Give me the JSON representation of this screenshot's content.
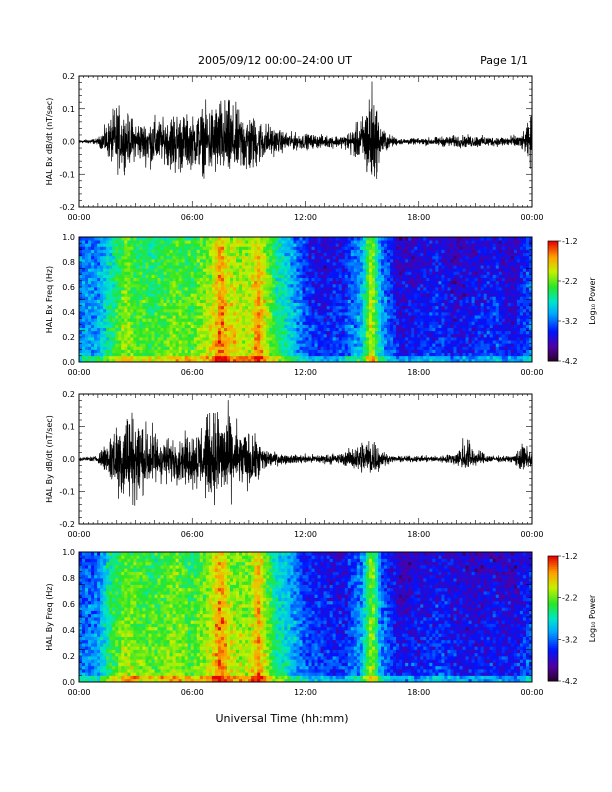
{
  "header": {
    "title": "2005/09/12  00:00–24:00 UT",
    "page": "Page 1/1"
  },
  "xaxis": {
    "label": "Universal Time (hh:mm)",
    "ticks": [
      "00:00",
      "06:00",
      "12:00",
      "18:00",
      "00:00"
    ],
    "range_hours": [
      0,
      24
    ]
  },
  "chart_data": [
    {
      "type": "line",
      "ylabel": "HAL Bx dB/dt (nT/sec)",
      "ylim": [
        -0.2,
        0.2
      ],
      "yticks": [
        "0.2",
        "0.1",
        "0.0",
        "-0.1",
        "-0.2"
      ],
      "envelope": {
        "x_hours": [
          0,
          1,
          1.5,
          2,
          2.5,
          3,
          3.5,
          4,
          4.5,
          5,
          5.5,
          6,
          6.5,
          7,
          7.5,
          8,
          8.5,
          9,
          9.5,
          10,
          10.5,
          11,
          12,
          13,
          14,
          14.5,
          15,
          15.5,
          16,
          16.5,
          17,
          18,
          19,
          20,
          21,
          22,
          23,
          23.5,
          24
        ],
        "upper": [
          0.005,
          0.01,
          0.06,
          0.12,
          0.09,
          0.07,
          0.06,
          0.08,
          0.07,
          0.1,
          0.09,
          0.08,
          0.11,
          0.12,
          0.14,
          0.13,
          0.1,
          0.09,
          0.07,
          0.06,
          0.04,
          0.03,
          0.025,
          0.02,
          0.02,
          0.04,
          0.08,
          0.2,
          0.05,
          0.02,
          0.01,
          0.01,
          0.015,
          0.02,
          0.02,
          0.015,
          0.02,
          0.02,
          0.09
        ],
        "lower": [
          -0.005,
          -0.01,
          -0.05,
          -0.1,
          -0.08,
          -0.06,
          -0.07,
          -0.09,
          -0.06,
          -0.11,
          -0.1,
          -0.08,
          -0.1,
          -0.12,
          -0.11,
          -0.13,
          -0.1,
          -0.12,
          -0.08,
          -0.05,
          -0.04,
          -0.03,
          -0.025,
          -0.02,
          -0.02,
          -0.05,
          -0.07,
          -0.17,
          -0.05,
          -0.02,
          -0.01,
          -0.01,
          -0.015,
          -0.02,
          -0.02,
          -0.015,
          -0.02,
          -0.03,
          -0.1
        ]
      }
    },
    {
      "type": "heatmap",
      "ylabel": "HAL Bx Freq (Hz)",
      "ylim": [
        0.0,
        1.0
      ],
      "yticks": [
        "1.0",
        "0.8",
        "0.6",
        "0.4",
        "0.2",
        "0.0"
      ],
      "colorbar": {
        "label": "Log₁₀ Power",
        "range": [
          -4.2,
          -1.2
        ],
        "ticks": [
          "-1.2",
          "-2.2",
          "-3.2",
          "-4.2"
        ]
      },
      "activity_profile": {
        "x_hours": [
          0,
          1,
          1.5,
          2,
          2.5,
          3,
          4,
          5,
          6,
          7,
          7.5,
          8,
          9,
          9.5,
          10,
          10.5,
          11,
          12,
          13,
          14,
          15,
          15.5,
          16,
          17,
          18,
          19,
          20,
          21,
          22,
          23,
          24
        ],
        "log_power": [
          -3.0,
          -2.9,
          -2.6,
          -2.3,
          -2.0,
          -2.2,
          -2.3,
          -2.1,
          -2.2,
          -1.9,
          -1.4,
          -1.8,
          -1.9,
          -1.5,
          -2.0,
          -2.4,
          -2.6,
          -3.2,
          -3.4,
          -3.3,
          -2.8,
          -1.8,
          -2.9,
          -3.5,
          -3.4,
          -3.3,
          -3.5,
          -3.4,
          -3.3,
          -3.5,
          -3.1
        ]
      }
    },
    {
      "type": "line",
      "ylabel": "HAL By dB/dt (nT/sec)",
      "ylim": [
        -0.2,
        0.2
      ],
      "yticks": [
        "0.2",
        "0.1",
        "0.0",
        "-0.1",
        "-0.2"
      ],
      "envelope": {
        "x_hours": [
          0,
          1,
          1.5,
          2,
          2.5,
          3,
          3.5,
          4,
          4.5,
          5,
          5.5,
          6,
          6.5,
          7,
          7.5,
          8,
          8.5,
          9,
          9.5,
          10,
          10.5,
          11,
          12,
          13,
          14,
          14.5,
          15,
          15.5,
          16,
          16.5,
          17,
          18,
          19,
          20,
          20.5,
          21,
          22,
          23,
          23.5,
          24
        ],
        "upper": [
          0.005,
          0.01,
          0.07,
          0.13,
          0.18,
          0.15,
          0.12,
          0.1,
          0.07,
          0.06,
          0.07,
          0.09,
          0.12,
          0.15,
          0.18,
          0.14,
          0.1,
          0.08,
          0.06,
          0.03,
          0.02,
          0.015,
          0.015,
          0.015,
          0.02,
          0.04,
          0.06,
          0.09,
          0.03,
          0.01,
          0.01,
          0.01,
          0.01,
          0.02,
          0.1,
          0.03,
          0.01,
          0.01,
          0.05,
          0.03
        ],
        "lower": [
          -0.005,
          -0.01,
          -0.06,
          -0.12,
          -0.15,
          -0.14,
          -0.11,
          -0.09,
          -0.08,
          -0.07,
          -0.08,
          -0.09,
          -0.11,
          -0.13,
          -0.14,
          -0.12,
          -0.1,
          -0.11,
          -0.08,
          -0.03,
          -0.02,
          -0.015,
          -0.015,
          -0.015,
          -0.02,
          -0.03,
          -0.05,
          -0.06,
          -0.03,
          -0.01,
          -0.01,
          -0.01,
          -0.01,
          -0.02,
          -0.04,
          -0.02,
          -0.01,
          -0.01,
          -0.05,
          -0.03
        ]
      }
    },
    {
      "type": "heatmap",
      "ylabel": "HAL By Freq (Hz)",
      "ylim": [
        0.0,
        1.0
      ],
      "yticks": [
        "1.0",
        "0.8",
        "0.6",
        "0.4",
        "0.2",
        "0.0"
      ],
      "colorbar": {
        "label": "Log₁₀ Power",
        "range": [
          -4.2,
          -1.2
        ],
        "ticks": [
          "-1.2",
          "-2.2",
          "-3.2",
          "-4.2"
        ]
      },
      "activity_profile": {
        "x_hours": [
          0,
          1,
          1.5,
          2,
          2.5,
          3,
          4,
          5,
          6,
          7,
          7.5,
          8,
          9,
          9.5,
          10,
          10.5,
          11,
          12,
          13,
          14,
          15,
          15.5,
          16,
          17,
          18,
          19,
          20,
          21,
          22,
          23,
          24
        ],
        "log_power": [
          -3.1,
          -3.0,
          -2.5,
          -2.2,
          -2.0,
          -2.1,
          -2.2,
          -2.0,
          -2.2,
          -1.9,
          -1.4,
          -1.9,
          -2.0,
          -1.5,
          -2.1,
          -2.5,
          -2.7,
          -3.2,
          -3.3,
          -3.4,
          -2.9,
          -1.9,
          -3.0,
          -3.5,
          -3.4,
          -3.3,
          -3.4,
          -3.5,
          -3.4,
          -3.5,
          -3.2
        ]
      }
    }
  ]
}
